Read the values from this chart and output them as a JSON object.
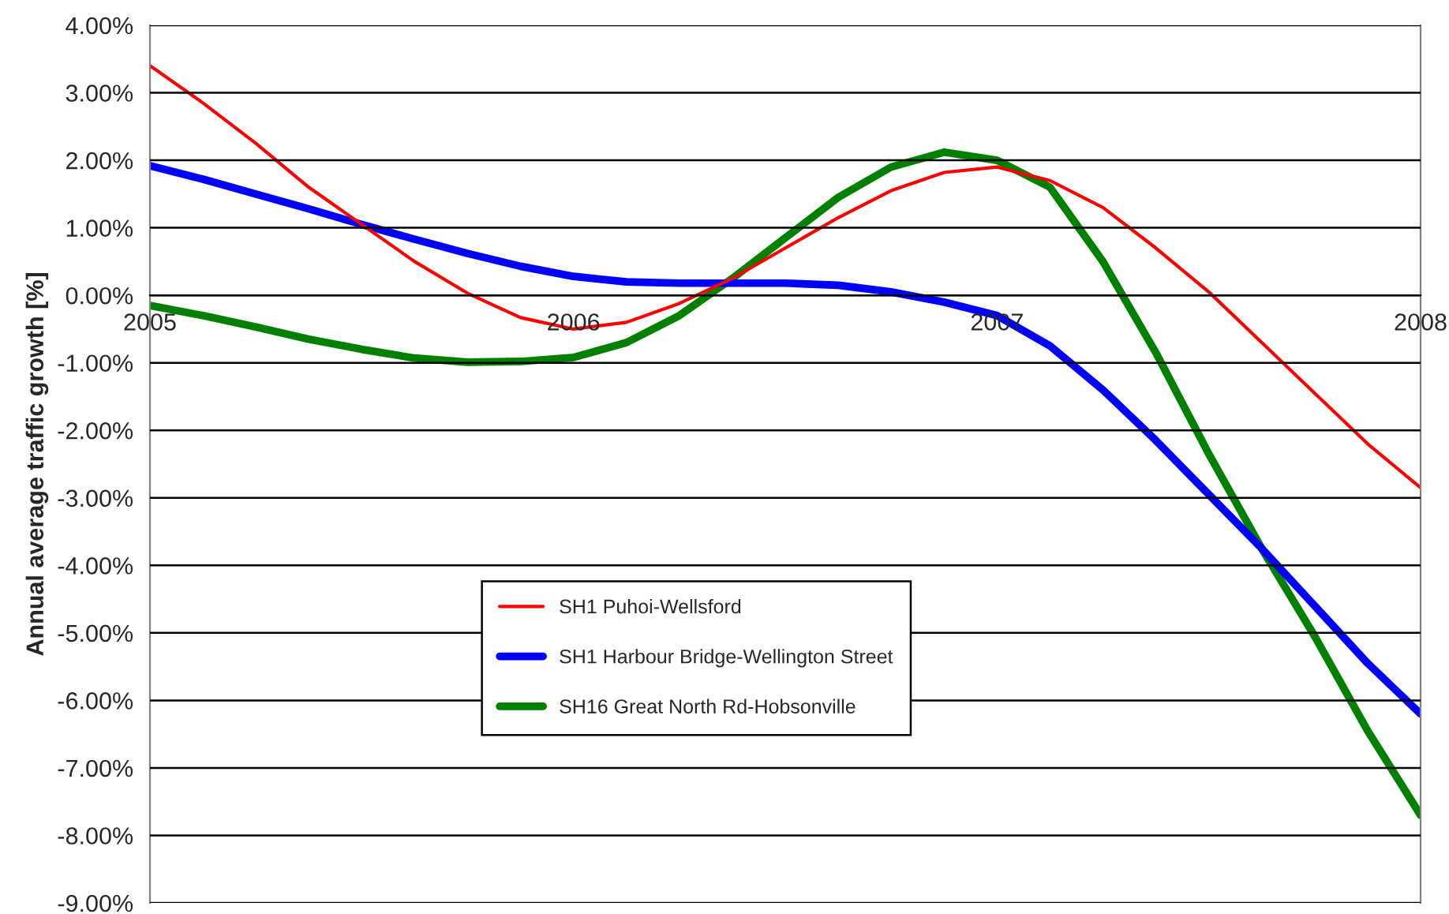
{
  "chart_data": {
    "type": "line",
    "ylabel": "Annual average traffic growth [%]",
    "x": [
      2005,
      2005.125,
      2005.25,
      2005.375,
      2005.5,
      2005.625,
      2005.75,
      2005.875,
      2006,
      2006.125,
      2006.25,
      2006.375,
      2006.5,
      2006.625,
      2006.75,
      2006.875,
      2007,
      2007.125,
      2007.25,
      2007.375,
      2007.5,
      2007.625,
      2007.75,
      2007.875,
      2008
    ],
    "xlim": [
      2005,
      2008
    ],
    "xticks": [
      2005,
      2006,
      2007,
      2008
    ],
    "ylim": [
      -9,
      4
    ],
    "yticks": [
      {
        "value": -9,
        "label": "-9.00%"
      },
      {
        "value": -8,
        "label": "-8.00%"
      },
      {
        "value": -7,
        "label": "-7.00%"
      },
      {
        "value": -6,
        "label": "-6.00%"
      },
      {
        "value": -5,
        "label": "-5.00%"
      },
      {
        "value": -4,
        "label": "-4.00%"
      },
      {
        "value": -3,
        "label": "-3.00%"
      },
      {
        "value": -2,
        "label": "-2.00%"
      },
      {
        "value": -1,
        "label": "-1.00%"
      },
      {
        "value": 0,
        "label": "0.00%"
      },
      {
        "value": 1,
        "label": "1.00%"
      },
      {
        "value": 2,
        "label": "2.00%"
      },
      {
        "value": 3,
        "label": "3.00%"
      },
      {
        "value": 4,
        "label": "4.00%"
      }
    ],
    "grid": "y",
    "legend": "bottom",
    "marker": "none",
    "line_style": "solid",
    "series": [
      {
        "name": "SH1 Puhoi-Wellsford",
        "color": "#ff0000",
        "values": [
          3.4,
          2.85,
          2.25,
          1.6,
          1.05,
          0.5,
          0.03,
          -0.33,
          -0.5,
          -0.4,
          -0.12,
          0.25,
          0.7,
          1.15,
          1.55,
          1.82,
          1.9,
          1.7,
          1.3,
          0.7,
          0.05,
          -0.7,
          -1.45,
          -2.2,
          -2.85
        ]
      },
      {
        "name": "SH1 Harbour Bridge-Wellington Street",
        "color": "#0000ff",
        "values": [
          1.92,
          1.72,
          1.5,
          1.28,
          1.05,
          0.83,
          0.62,
          0.43,
          0.28,
          0.2,
          0.18,
          0.18,
          0.18,
          0.15,
          0.05,
          -0.1,
          -0.3,
          -0.75,
          -1.4,
          -2.15,
          -2.95,
          -3.75,
          -4.6,
          -5.45,
          -6.2
        ]
      },
      {
        "name": "SH16 Great North Rd-Hobsonville",
        "color": "#008000",
        "values": [
          -0.15,
          -0.3,
          -0.47,
          -0.65,
          -0.8,
          -0.93,
          -0.99,
          -0.98,
          -0.92,
          -0.7,
          -0.3,
          0.25,
          0.85,
          1.45,
          1.9,
          2.12,
          2.0,
          1.6,
          0.5,
          -0.85,
          -2.35,
          -3.75,
          -5.05,
          -6.45,
          -7.7
        ]
      }
    ]
  }
}
